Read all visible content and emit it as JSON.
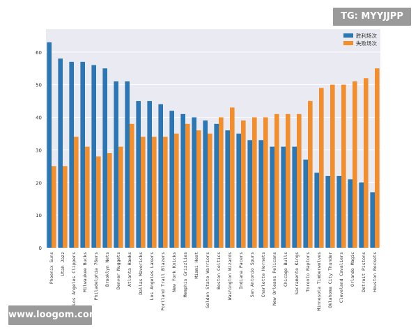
{
  "watermark_top": "TG: MYYJJPP",
  "watermark_bottom": "www.loogom.com",
  "chart_data": {
    "type": "bar",
    "title": "",
    "xlabel": "",
    "ylabel": "",
    "ylim": [
      0,
      67
    ],
    "yticks": [
      0,
      10,
      20,
      30,
      40,
      50,
      60
    ],
    "grid": true,
    "legend_position": "top-right",
    "colors": {
      "wins": "#2a77b4",
      "losses": "#f28e2b",
      "background": "#eaeaf2",
      "grid": "#ffffff",
      "text": "#333333"
    },
    "categories": [
      "Phoenix Suns",
      "Utah Jazz",
      "Los Angeles Clippers",
      "Milwaukee Bucks",
      "Philadelphia 76ers",
      "Brooklyn Nets",
      "Denver Nuggets",
      "Atlanta Hawks",
      "Dallas Mavericks",
      "Los Angeles Lakers",
      "Portland Trail Blazers",
      "New York Knicks",
      "Memphis Grizzlies",
      "Miami Heat",
      "Golden State Warriors",
      "Boston Celtics",
      "Washington Wizards",
      "Indiana Pacers",
      "San Antonio Spurs",
      "Charlotte Hornets",
      "New Orleans Pelicans",
      "Chicago Bulls",
      "Sacramento Kings",
      "Toronto Raptors",
      "Minnesota Timberwolves",
      "Oklahoma City Thunder",
      "Cleveland Cavaliers",
      "Orlando Magic",
      "Detroit Pistons",
      "Houston Rockets"
    ],
    "series": [
      {
        "name": "胜利场次",
        "key": "wins",
        "values": [
          63,
          58,
          57,
          57,
          56,
          55,
          51,
          51,
          45,
          45,
          44,
          42,
          41,
          40,
          39,
          38,
          36,
          35,
          33,
          33,
          31,
          31,
          31,
          27,
          23,
          22,
          22,
          21,
          20,
          17
        ]
      },
      {
        "name": "失败场次",
        "key": "losses",
        "values": [
          25,
          25,
          34,
          31,
          28,
          29,
          31,
          38,
          34,
          34,
          34,
          35,
          38,
          36,
          35,
          40,
          43,
          39,
          40,
          40,
          41,
          41,
          41,
          45,
          49,
          50,
          50,
          51,
          52,
          55
        ]
      }
    ]
  }
}
